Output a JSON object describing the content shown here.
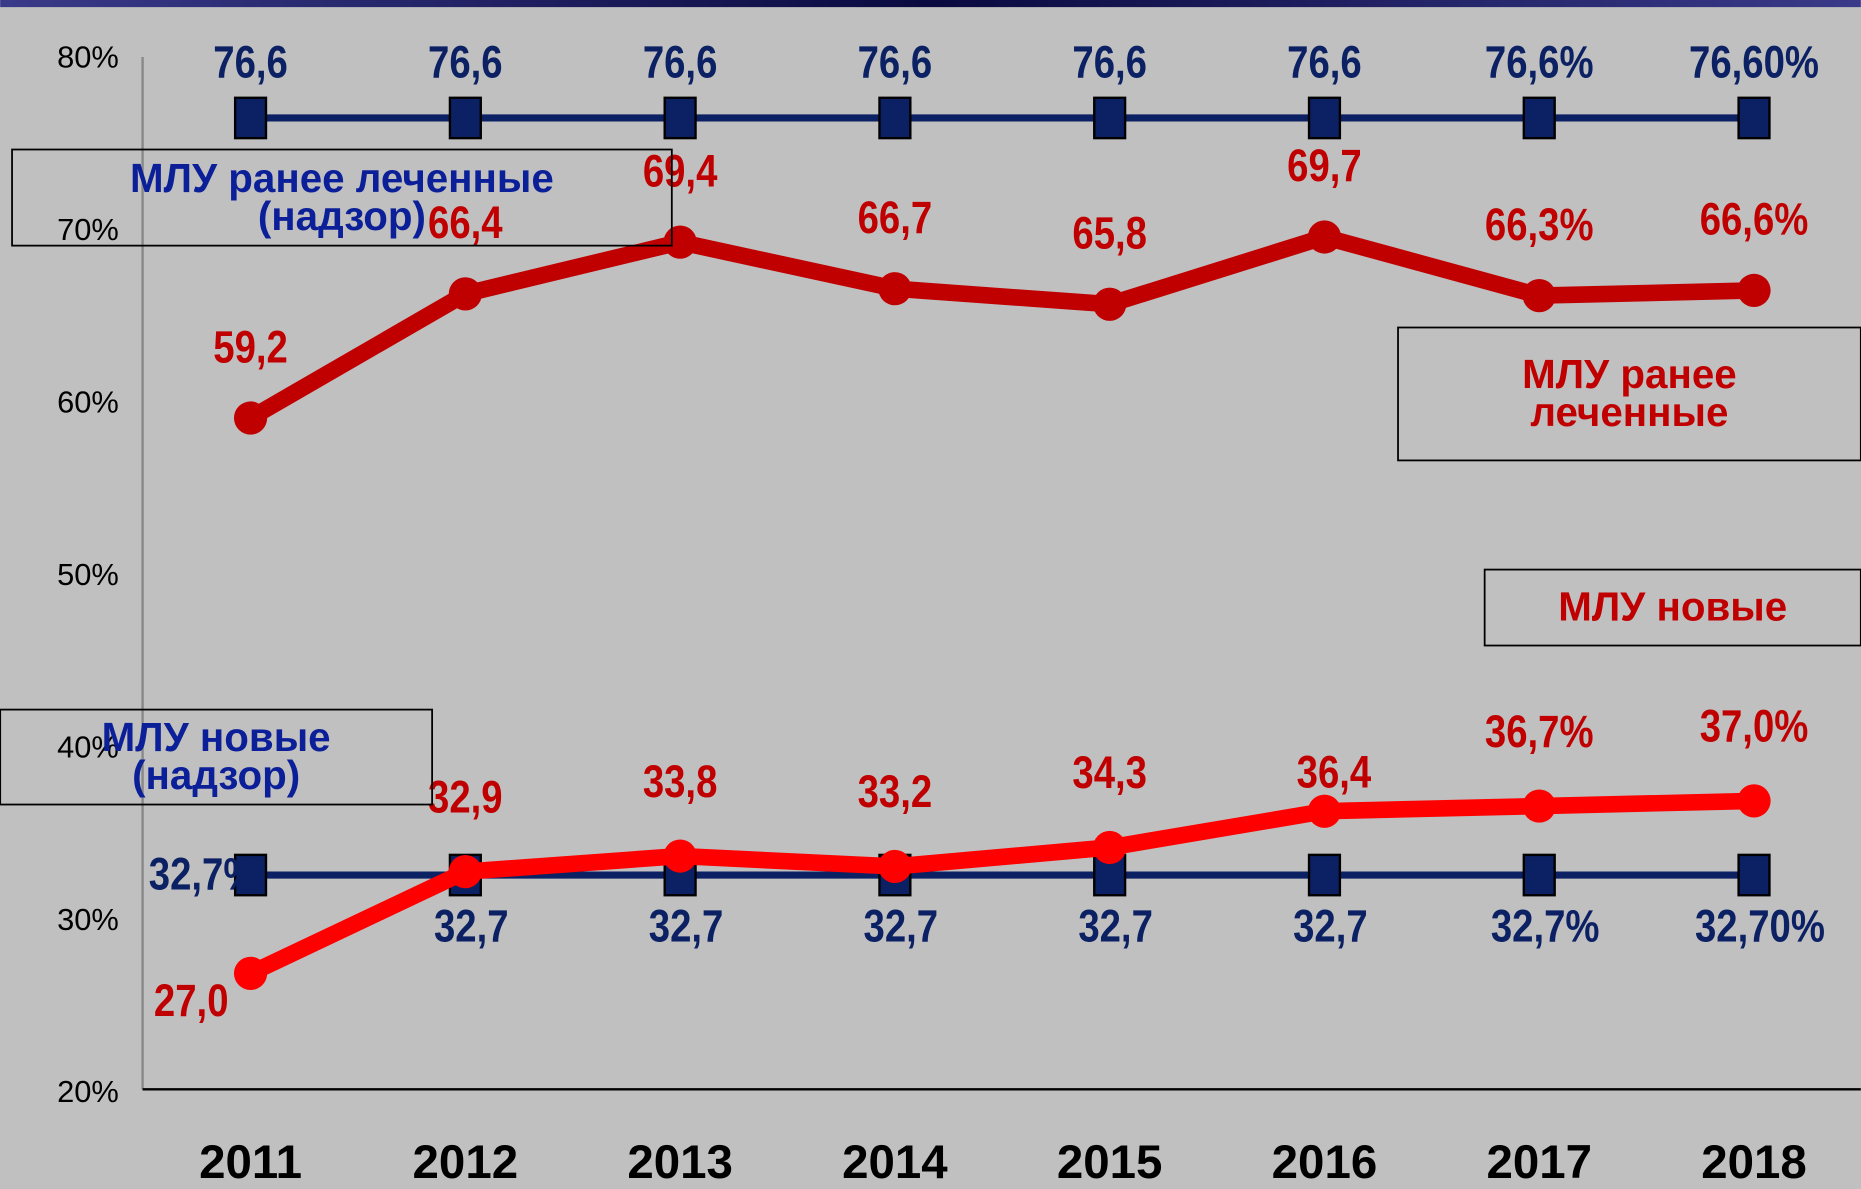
{
  "chart_data": {
    "type": "line",
    "categories": [
      "2011",
      "2012",
      "2013",
      "2014",
      "2015",
      "2016",
      "2017",
      "2018"
    ],
    "ylim": [
      20,
      80
    ],
    "yticks": [
      {
        "value": 20,
        "label": "20%"
      },
      {
        "value": 30,
        "label": "30%"
      },
      {
        "value": 40,
        "label": "40%"
      },
      {
        "value": 50,
        "label": "50%"
      },
      {
        "value": 60,
        "label": "60%"
      },
      {
        "value": 70,
        "label": "70%"
      },
      {
        "value": 80,
        "label": "80%"
      }
    ],
    "series": [
      {
        "name": "МЛУ ранее леченные (надзор)",
        "color": "#0b2163",
        "marker": "square",
        "values": [
          76.6,
          76.6,
          76.6,
          76.6,
          76.6,
          76.6,
          76.6,
          76.6
        ],
        "value_labels": [
          "76,6",
          "76,6",
          "76,6",
          "76,6",
          "76,6",
          "76,6",
          "76,6%",
          "76,60%"
        ]
      },
      {
        "name": "МЛУ новые (надзор)",
        "color": "#0b2163",
        "marker": "square",
        "values": [
          32.7,
          32.7,
          32.7,
          32.7,
          32.7,
          32.7,
          32.7,
          32.7
        ],
        "value_labels": [
          "32,7%",
          "32,7",
          "32,7",
          "32,7",
          "32,7",
          "32,7",
          "32,7%",
          "32,70%"
        ]
      },
      {
        "name": "МЛУ ранее леченные",
        "color": "#c00000",
        "marker": "circle",
        "values": [
          59.2,
          66.4,
          69.4,
          66.7,
          65.8,
          69.7,
          66.3,
          66.6
        ],
        "value_labels": [
          "59,2",
          "66,4",
          "69,4",
          "66,7",
          "65,8",
          "69,7",
          "66,3%",
          "66,6%"
        ]
      },
      {
        "name": "МЛУ новые",
        "color": "#ff0000",
        "marker": "circle",
        "values": [
          27.0,
          32.9,
          33.8,
          33.2,
          34.3,
          36.4,
          36.7,
          37.0
        ],
        "value_labels": [
          "27,0",
          "32,9",
          "33,8",
          "33,2",
          "34,3",
          "36,4",
          "36,7%",
          "37,0%"
        ]
      }
    ]
  }
}
